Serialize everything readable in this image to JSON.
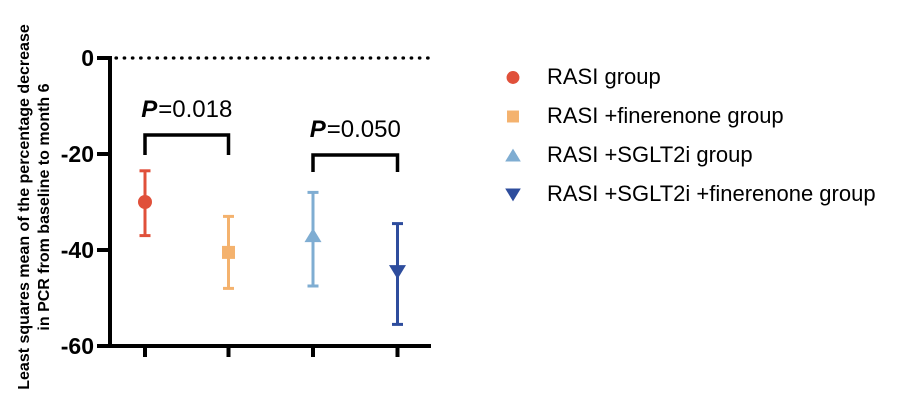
{
  "chart_data": {
    "type": "scatter",
    "subtype": "point-estimates-with-error-bars",
    "title": "",
    "xlabel": "",
    "ylabel_line1": "Least squares mean of the percentage decrease",
    "ylabel_line2": "in PCR from baseline to month 6",
    "ylim": [
      -60,
      0
    ],
    "grid": false,
    "zero_line_style": "dotted",
    "legend_position": "right",
    "yticks": [
      {
        "label": "0",
        "value": 0
      },
      {
        "label": "-20",
        "value": -20
      },
      {
        "label": "-40",
        "value": -40
      },
      {
        "label": "-60",
        "value": -60
      }
    ],
    "series": [
      {
        "name": "RASI group",
        "marker": "circle",
        "color": "#E0503A",
        "mean": -30,
        "ci": [
          -23.5,
          -37
        ]
      },
      {
        "name": "RASI +finerenone group",
        "marker": "square",
        "color": "#F4B26E",
        "mean": -40.5,
        "ci": [
          -33,
          -48
        ]
      },
      {
        "name": "RASI +SGLT2i group",
        "marker": "triangle-up",
        "color": "#7FADD2",
        "mean": -37,
        "ci": [
          -28,
          -47.5
        ]
      },
      {
        "name": "RASI +SGLT2i +finerenone group",
        "marker": "triangle-down",
        "color": "#2E4D9D",
        "mean": -44.5,
        "ci": [
          -34.5,
          -55.5
        ]
      }
    ],
    "comparisons": [
      {
        "groups": [
          0,
          1
        ],
        "label": {
          "symbol": "P",
          "value": "=0.018"
        }
      },
      {
        "groups": [
          2,
          3
        ],
        "label": {
          "symbol": "P",
          "value": "=0.050"
        }
      }
    ],
    "axis_color": "#000000"
  }
}
